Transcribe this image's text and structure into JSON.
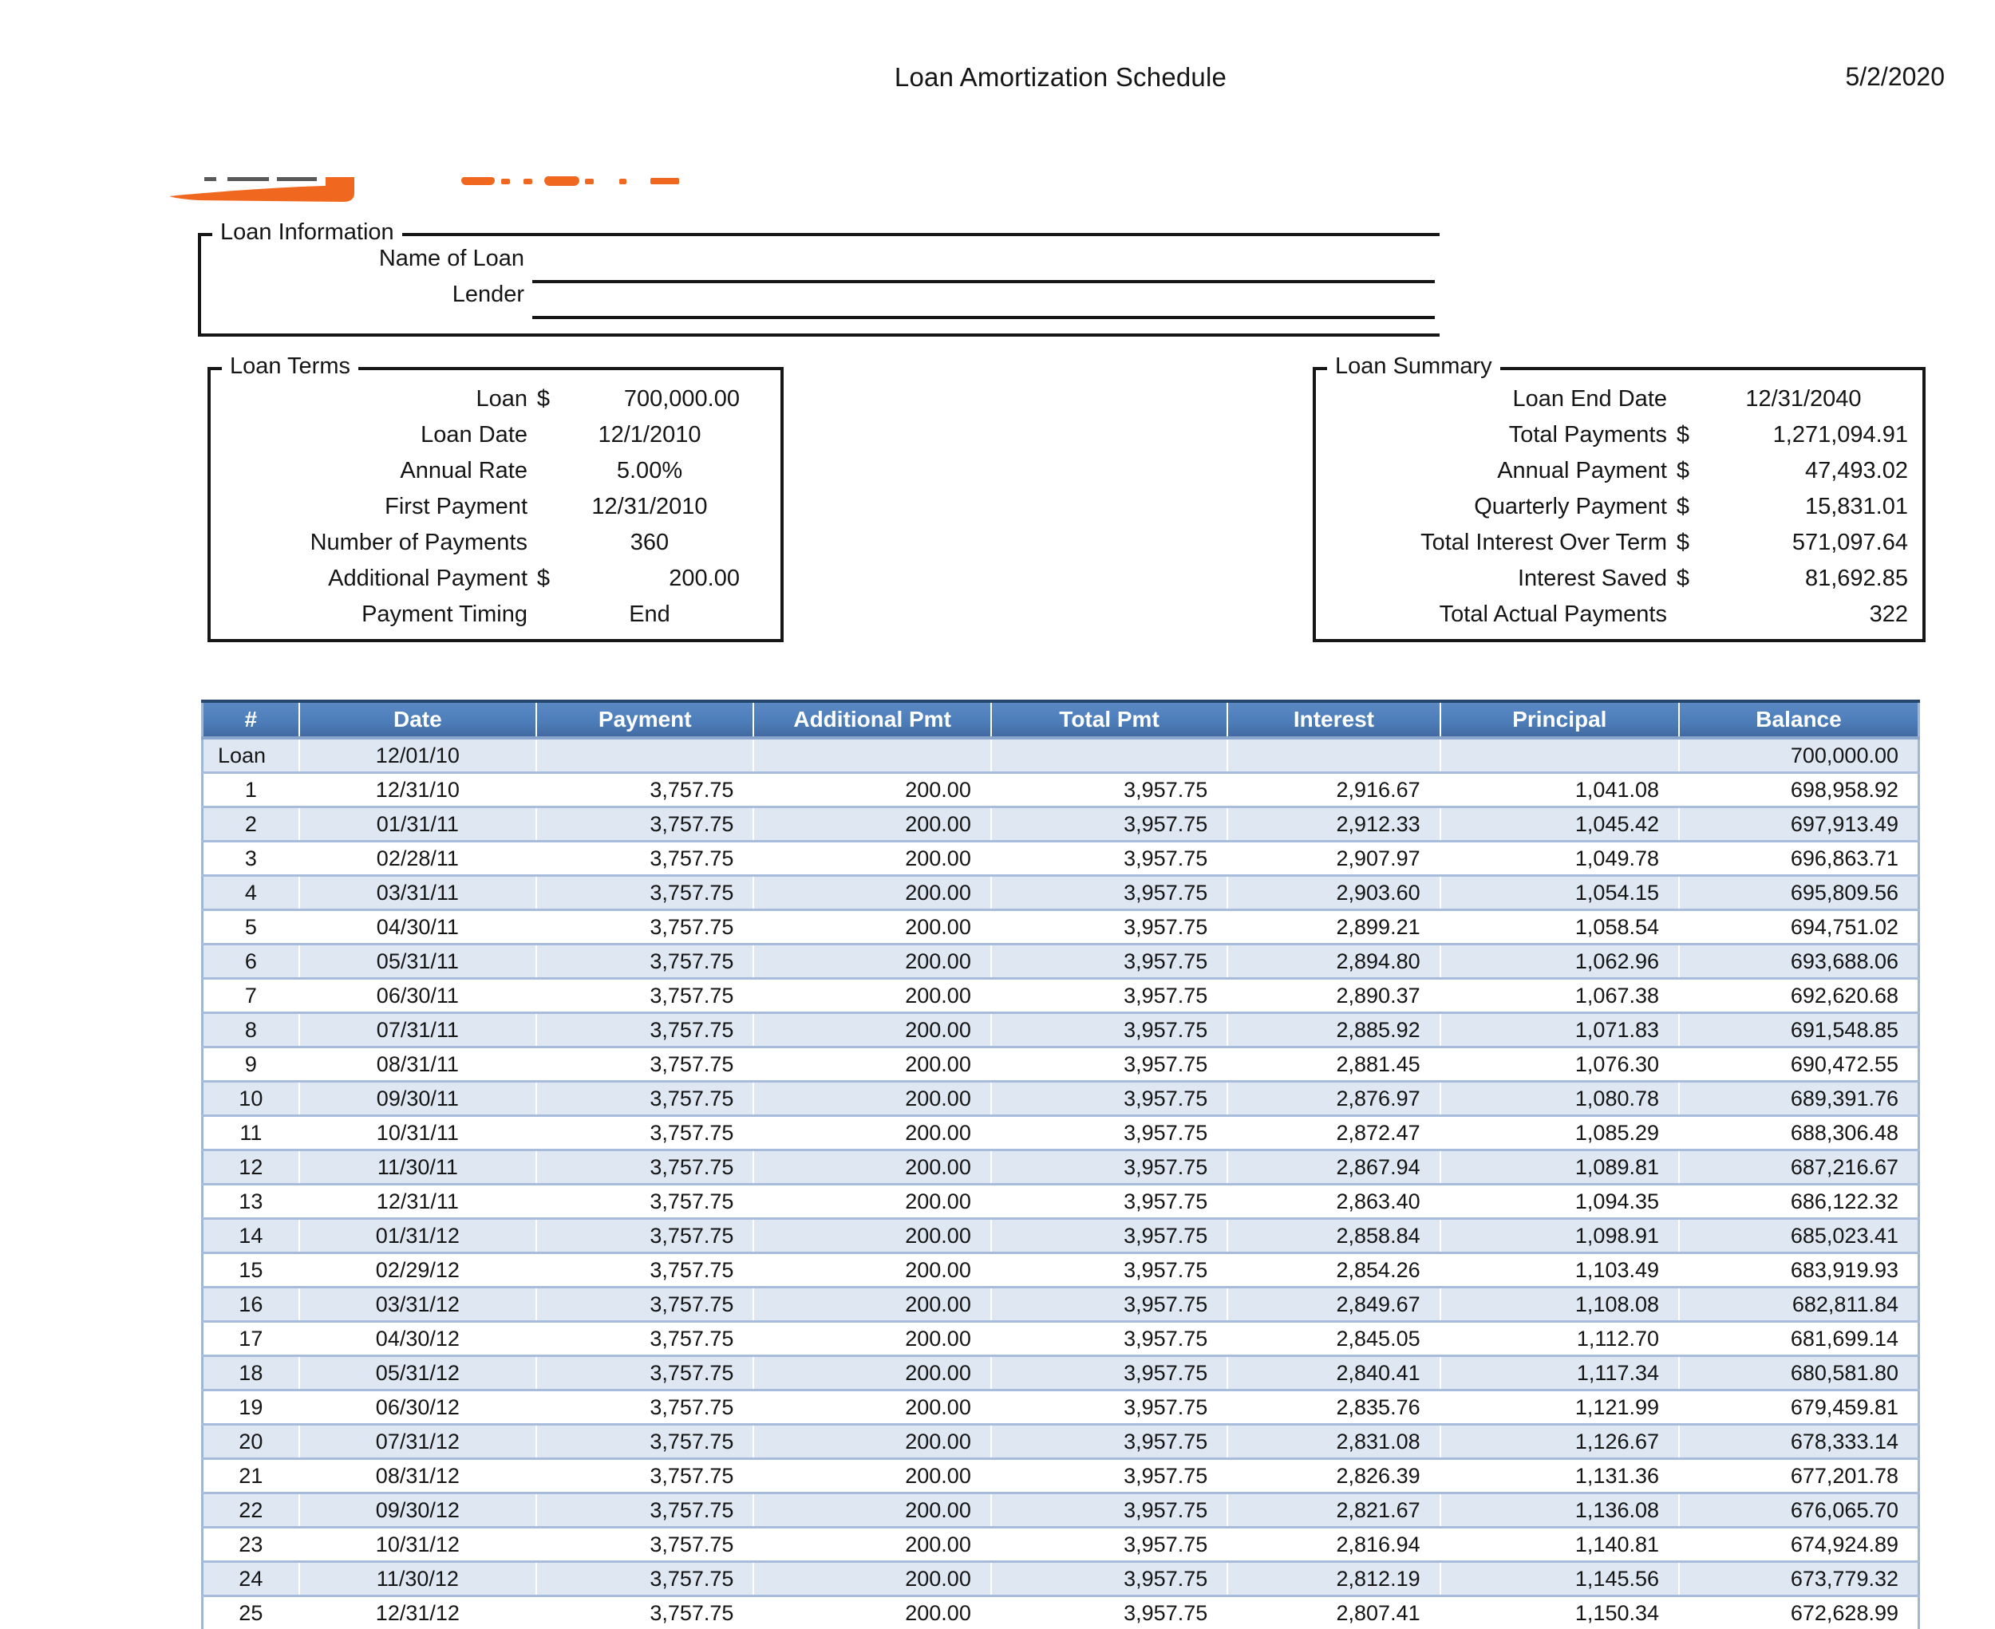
{
  "document": {
    "title": "Loan Amortization Schedule",
    "date": "5/2/2020"
  },
  "logo": {
    "name": "company-logo-cropped",
    "accent_color": "#F0671F",
    "dash_color": "#595959"
  },
  "colors": {
    "table_header_blue": "#4D7EBA",
    "table_alt_row_blue": "#DEE7F2",
    "row_separator_blue": "#A6BCDA",
    "table_top_border_navy": "#26486F",
    "column_separator": "#FFFFFF"
  },
  "loan_information": {
    "legend": "Loan Information",
    "fields": [
      {
        "label": "Name of Loan",
        "value": ""
      },
      {
        "label": "Lender",
        "value": ""
      }
    ]
  },
  "loan_terms": {
    "legend": "Loan Terms",
    "rows": [
      {
        "label": "Loan",
        "currency": "$",
        "value": "700,000.00",
        "align": "right"
      },
      {
        "label": "Loan Date",
        "currency": "",
        "value": "12/1/2010",
        "align": "center"
      },
      {
        "label": "Annual Rate",
        "currency": "",
        "value": "5.00%",
        "align": "center"
      },
      {
        "label": "First Payment",
        "currency": "",
        "value": "12/31/2010",
        "align": "center"
      },
      {
        "label": "Number of Payments",
        "currency": "",
        "value": "360",
        "align": "center"
      },
      {
        "label": "Additional Payment",
        "currency": "$",
        "value": "200.00",
        "align": "right"
      },
      {
        "label": "Payment Timing",
        "currency": "",
        "value": "End",
        "align": "center"
      }
    ]
  },
  "loan_summary": {
    "legend": "Loan Summary",
    "rows": [
      {
        "label": "Loan End Date",
        "currency": "",
        "value": "12/31/2040",
        "align": "center"
      },
      {
        "label": "Total Payments",
        "currency": "$",
        "value": "1,271,094.91",
        "align": "right"
      },
      {
        "label": "Annual Payment",
        "currency": "$",
        "value": "47,493.02",
        "align": "right"
      },
      {
        "label": "Quarterly Payment",
        "currency": "$",
        "value": "15,831.01",
        "align": "right"
      },
      {
        "label": "Total Interest Over Term",
        "currency": "$",
        "value": "571,097.64",
        "align": "right"
      },
      {
        "label": "Interest Saved",
        "currency": "$",
        "value": "81,692.85",
        "align": "right"
      },
      {
        "label": "Total Actual Payments",
        "currency": "",
        "value": "322",
        "align": "right"
      }
    ]
  },
  "table": {
    "headers": [
      "#",
      "Date",
      "Payment",
      "Additional Pmt",
      "Total Pmt",
      "Interest",
      "Principal",
      "Balance"
    ],
    "rows": [
      [
        "Loan",
        "12/01/10",
        "",
        "",
        "",
        "",
        "",
        "700,000.00"
      ],
      [
        "1",
        "12/31/10",
        "3,757.75",
        "200.00",
        "3,957.75",
        "2,916.67",
        "1,041.08",
        "698,958.92"
      ],
      [
        "2",
        "01/31/11",
        "3,757.75",
        "200.00",
        "3,957.75",
        "2,912.33",
        "1,045.42",
        "697,913.49"
      ],
      [
        "3",
        "02/28/11",
        "3,757.75",
        "200.00",
        "3,957.75",
        "2,907.97",
        "1,049.78",
        "696,863.71"
      ],
      [
        "4",
        "03/31/11",
        "3,757.75",
        "200.00",
        "3,957.75",
        "2,903.60",
        "1,054.15",
        "695,809.56"
      ],
      [
        "5",
        "04/30/11",
        "3,757.75",
        "200.00",
        "3,957.75",
        "2,899.21",
        "1,058.54",
        "694,751.02"
      ],
      [
        "6",
        "05/31/11",
        "3,757.75",
        "200.00",
        "3,957.75",
        "2,894.80",
        "1,062.96",
        "693,688.06"
      ],
      [
        "7",
        "06/30/11",
        "3,757.75",
        "200.00",
        "3,957.75",
        "2,890.37",
        "1,067.38",
        "692,620.68"
      ],
      [
        "8",
        "07/31/11",
        "3,757.75",
        "200.00",
        "3,957.75",
        "2,885.92",
        "1,071.83",
        "691,548.85"
      ],
      [
        "9",
        "08/31/11",
        "3,757.75",
        "200.00",
        "3,957.75",
        "2,881.45",
        "1,076.30",
        "690,472.55"
      ],
      [
        "10",
        "09/30/11",
        "3,757.75",
        "200.00",
        "3,957.75",
        "2,876.97",
        "1,080.78",
        "689,391.76"
      ],
      [
        "11",
        "10/31/11",
        "3,757.75",
        "200.00",
        "3,957.75",
        "2,872.47",
        "1,085.29",
        "688,306.48"
      ],
      [
        "12",
        "11/30/11",
        "3,757.75",
        "200.00",
        "3,957.75",
        "2,867.94",
        "1,089.81",
        "687,216.67"
      ],
      [
        "13",
        "12/31/11",
        "3,757.75",
        "200.00",
        "3,957.75",
        "2,863.40",
        "1,094.35",
        "686,122.32"
      ],
      [
        "14",
        "01/31/12",
        "3,757.75",
        "200.00",
        "3,957.75",
        "2,858.84",
        "1,098.91",
        "685,023.41"
      ],
      [
        "15",
        "02/29/12",
        "3,757.75",
        "200.00",
        "3,957.75",
        "2,854.26",
        "1,103.49",
        "683,919.93"
      ],
      [
        "16",
        "03/31/12",
        "3,757.75",
        "200.00",
        "3,957.75",
        "2,849.67",
        "1,108.08",
        "682,811.84"
      ],
      [
        "17",
        "04/30/12",
        "3,757.75",
        "200.00",
        "3,957.75",
        "2,845.05",
        "1,112.70",
        "681,699.14"
      ],
      [
        "18",
        "05/31/12",
        "3,757.75",
        "200.00",
        "3,957.75",
        "2,840.41",
        "1,117.34",
        "680,581.80"
      ],
      [
        "19",
        "06/30/12",
        "3,757.75",
        "200.00",
        "3,957.75",
        "2,835.76",
        "1,121.99",
        "679,459.81"
      ],
      [
        "20",
        "07/31/12",
        "3,757.75",
        "200.00",
        "3,957.75",
        "2,831.08",
        "1,126.67",
        "678,333.14"
      ],
      [
        "21",
        "08/31/12",
        "3,757.75",
        "200.00",
        "3,957.75",
        "2,826.39",
        "1,131.36",
        "677,201.78"
      ],
      [
        "22",
        "09/30/12",
        "3,757.75",
        "200.00",
        "3,957.75",
        "2,821.67",
        "1,136.08",
        "676,065.70"
      ],
      [
        "23",
        "10/31/12",
        "3,757.75",
        "200.00",
        "3,957.75",
        "2,816.94",
        "1,140.81",
        "674,924.89"
      ],
      [
        "24",
        "11/30/12",
        "3,757.75",
        "200.00",
        "3,957.75",
        "2,812.19",
        "1,145.56",
        "673,779.32"
      ],
      [
        "25",
        "12/31/12",
        "3,757.75",
        "200.00",
        "3,957.75",
        "2,807.41",
        "1,150.34",
        "672,628.99"
      ]
    ]
  }
}
